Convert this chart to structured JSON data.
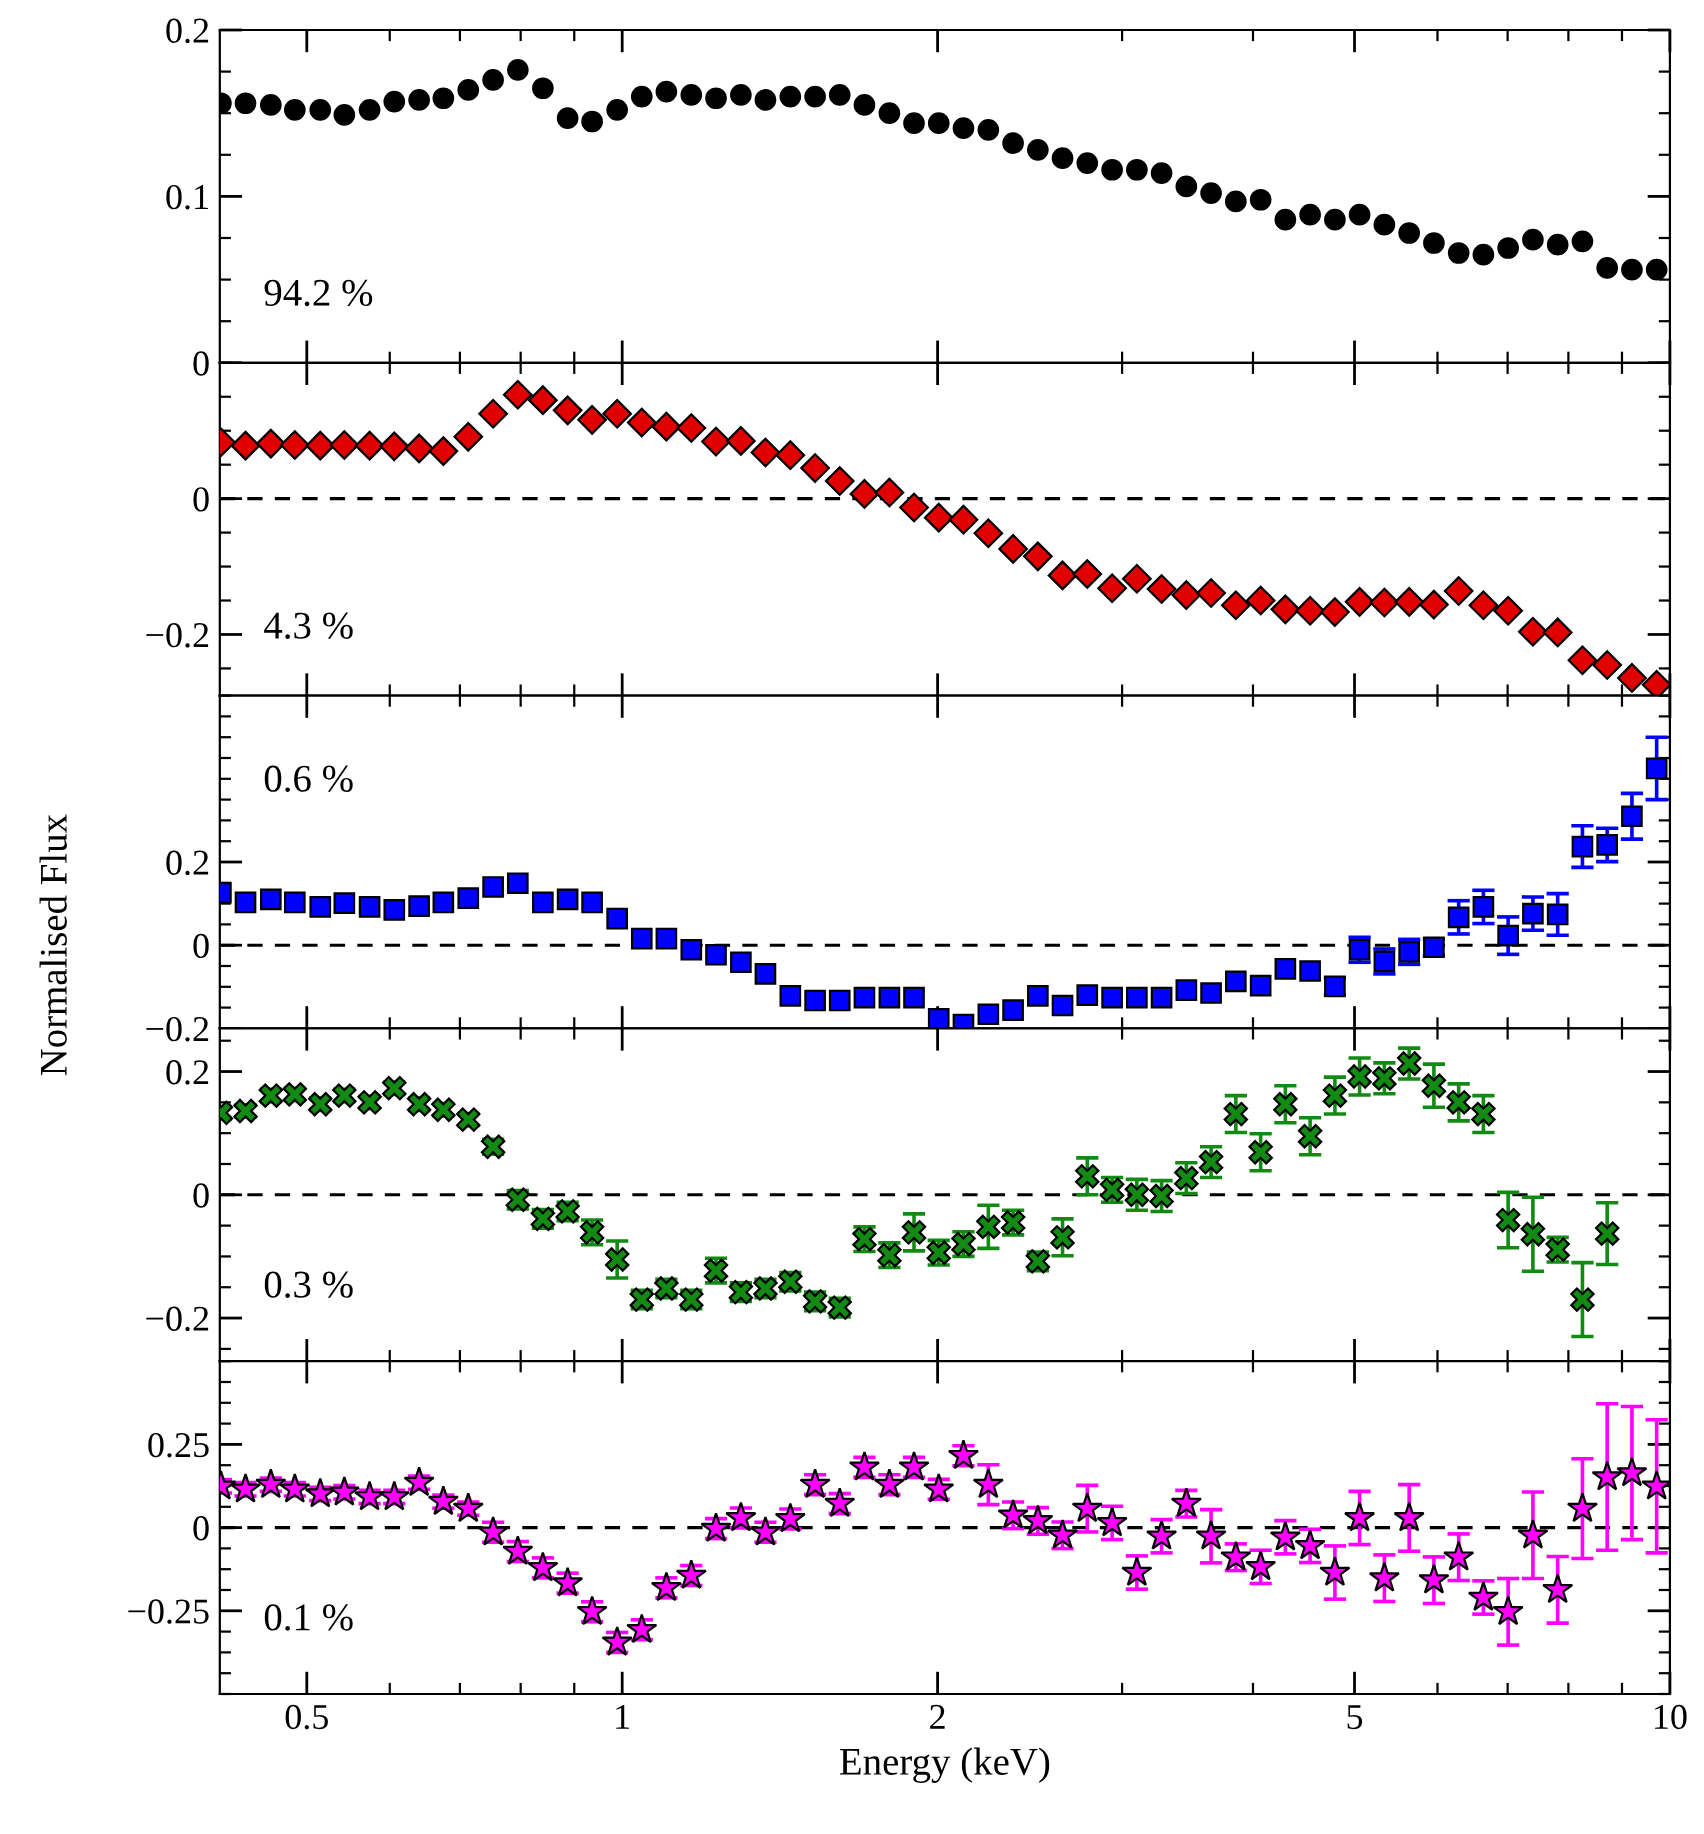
{
  "chart_data": [
    {
      "type": "scatter",
      "log": "x",
      "x": [
        0.414,
        0.437,
        0.462,
        0.487,
        0.515,
        0.543,
        0.574,
        0.606,
        0.64,
        0.675,
        0.713,
        0.753,
        0.795,
        0.84,
        0.887,
        0.936,
        0.989,
        1.044,
        1.102,
        1.164,
        1.229,
        1.298,
        1.37,
        1.447,
        1.528,
        1.613,
        1.703,
        1.799,
        1.899,
        2.005,
        2.117,
        2.236,
        2.361,
        2.493,
        2.632,
        2.779,
        2.935,
        3.099,
        3.272,
        3.455,
        3.648,
        3.852,
        4.068,
        4.295,
        4.535,
        4.789,
        5.056,
        5.339,
        5.638,
        5.953,
        6.286,
        6.637,
        7.008,
        7.4,
        7.814,
        8.251,
        8.712,
        9.199,
        9.713
      ],
      "xlim": [
        0.413,
        10
      ],
      "xticks": [
        0.5,
        1,
        2,
        5,
        10
      ],
      "ylim": [
        0,
        0.2
      ],
      "yticks": [
        0,
        {
          "value": 0.1,
          "label": "0.1"
        },
        {
          "value": 0.2,
          "label": "0.2"
        }
      ],
      "tick_labels": "y",
      "marker": "circle",
      "grid": false,
      "annotations": [
        "94.2 %"
      ],
      "series": [
        {
          "color": "#000000",
          "values": [
            0.156,
            0.156,
            0.155,
            0.152,
            0.152,
            0.149,
            0.152,
            0.157,
            0.158,
            0.159,
            0.164,
            0.17,
            0.176,
            0.165,
            0.147,
            0.145,
            0.152,
            0.16,
            0.163,
            0.161,
            0.159,
            0.161,
            0.158,
            0.16,
            0.16,
            0.161,
            0.155,
            0.15,
            0.144,
            0.144,
            0.141,
            0.14,
            0.132,
            0.128,
            0.123,
            0.12,
            0.116,
            0.116,
            0.114,
            0.106,
            0.102,
            0.097,
            0.098,
            0.086,
            0.089,
            0.086,
            0.089,
            0.083,
            0.078,
            0.072,
            0.066,
            0.065,
            0.069,
            0.074,
            0.071,
            0.073,
            0.057,
            0.056,
            0.056
          ]
        }
      ]
    },
    {
      "type": "scatter",
      "log": "x",
      "x": [
        0.414,
        0.437,
        0.462,
        0.487,
        0.515,
        0.543,
        0.574,
        0.606,
        0.64,
        0.675,
        0.713,
        0.753,
        0.795,
        0.84,
        0.887,
        0.936,
        0.989,
        1.044,
        1.102,
        1.164,
        1.229,
        1.298,
        1.37,
        1.447,
        1.528,
        1.613,
        1.703,
        1.799,
        1.899,
        2.005,
        2.117,
        2.236,
        2.361,
        2.493,
        2.632,
        2.779,
        2.935,
        3.099,
        3.272,
        3.455,
        3.648,
        3.852,
        4.068,
        4.295,
        4.535,
        4.789,
        5.056,
        5.339,
        5.638,
        5.953,
        6.286,
        6.637,
        7.008,
        7.4,
        7.814,
        8.251,
        8.712,
        9.199,
        9.713
      ],
      "xlim": [
        0.413,
        10
      ],
      "xticks": [
        0.5,
        1,
        2,
        5,
        10
      ],
      "ylim": [
        -0.29,
        0.2
      ],
      "yticks": [
        {
          "value": -0.2,
          "label": "−0.2"
        },
        0
      ],
      "tick_labels": "y",
      "marker": "diamond",
      "grid": false,
      "annotations": [
        "4.3 %"
      ],
      "ref_lines": [
        {
          "axis": "y",
          "value": 0,
          "color": "#000000",
          "line_style": "dashed"
        }
      ],
      "series": [
        {
          "color": "#e00000",
          "values": [
            0.083,
            0.078,
            0.081,
            0.079,
            0.078,
            0.079,
            0.078,
            0.077,
            0.074,
            0.07,
            0.091,
            0.125,
            0.153,
            0.145,
            0.13,
            0.116,
            0.125,
            0.112,
            0.106,
            0.104,
            0.084,
            0.085,
            0.068,
            0.064,
            0.045,
            0.026,
            0.007,
            0.009,
            -0.013,
            -0.028,
            -0.031,
            -0.051,
            -0.074,
            -0.085,
            -0.113,
            -0.111,
            -0.132,
            -0.118,
            -0.133,
            -0.142,
            -0.139,
            -0.157,
            -0.15,
            -0.163,
            -0.165,
            -0.167,
            -0.152,
            -0.153,
            -0.152,
            -0.156,
            -0.136,
            -0.157,
            -0.165,
            -0.196,
            -0.197,
            -0.238,
            -0.245,
            -0.264,
            -0.274
          ]
        }
      ]
    },
    {
      "type": "scatter",
      "log": "x",
      "x": [
        0.414,
        0.437,
        0.462,
        0.487,
        0.515,
        0.543,
        0.574,
        0.606,
        0.64,
        0.675,
        0.713,
        0.753,
        0.795,
        0.84,
        0.887,
        0.936,
        0.989,
        1.044,
        1.102,
        1.164,
        1.229,
        1.298,
        1.37,
        1.447,
        1.528,
        1.613,
        1.703,
        1.799,
        1.899,
        2.005,
        2.117,
        2.236,
        2.361,
        2.493,
        2.632,
        2.779,
        2.935,
        3.099,
        3.272,
        3.455,
        3.648,
        3.852,
        4.068,
        4.295,
        4.535,
        4.789,
        5.056,
        5.339,
        5.638,
        5.953,
        6.286,
        6.637,
        7.008,
        7.4,
        7.814,
        8.251,
        8.712,
        9.199,
        9.713
      ],
      "xlim": [
        0.413,
        10
      ],
      "xticks": [
        0.5,
        1,
        2,
        5,
        10
      ],
      "ylim": [
        -0.2,
        0.6
      ],
      "yticks": [
        {
          "value": -0.2,
          "label": "−0.2"
        },
        0,
        {
          "value": 0.2,
          "label": "0.2"
        }
      ],
      "tick_labels": "y",
      "marker": "square",
      "grid": false,
      "ylabel": "Normalised Flux",
      "annotations": [
        "0.6 %"
      ],
      "ref_lines": [
        {
          "axis": "y",
          "value": 0,
          "color": "#000000",
          "line_style": "dashed"
        }
      ],
      "series": [
        {
          "color": "#0000ff",
          "values": [
            0.126,
            0.103,
            0.11,
            0.103,
            0.092,
            0.101,
            0.092,
            0.085,
            0.094,
            0.103,
            0.113,
            0.14,
            0.149,
            0.103,
            0.11,
            0.103,
            0.064,
            0.016,
            0.016,
            -0.011,
            -0.023,
            -0.041,
            -0.069,
            -0.122,
            -0.133,
            -0.133,
            -0.126,
            -0.126,
            -0.126,
            -0.177,
            -0.191,
            -0.166,
            -0.156,
            -0.122,
            -0.145,
            -0.12,
            -0.126,
            -0.126,
            -0.126,
            -0.108,
            -0.115,
            -0.087,
            -0.097,
            -0.057,
            -0.062,
            -0.099,
            -0.011,
            -0.039,
            -0.016,
            -0.005,
            0.067,
            0.092,
            0.023,
            0.076,
            0.074,
            0.237,
            0.241,
            0.31,
            0.425
          ],
          "errors": [
            null,
            null,
            null,
            null,
            null,
            null,
            null,
            null,
            null,
            null,
            null,
            null,
            null,
            null,
            null,
            null,
            null,
            null,
            null,
            null,
            null,
            null,
            null,
            null,
            null,
            null,
            null,
            null,
            null,
            null,
            null,
            null,
            null,
            null,
            null,
            null,
            null,
            null,
            null,
            null,
            null,
            null,
            null,
            null,
            null,
            0.02,
            0.03,
            0.03,
            0.03,
            0.02,
            0.04,
            0.04,
            0.045,
            0.04,
            0.05,
            0.05,
            0.04,
            0.055,
            0.075
          ]
        }
      ]
    },
    {
      "type": "scatter",
      "log": "x",
      "x": [
        0.414,
        0.437,
        0.462,
        0.487,
        0.515,
        0.543,
        0.574,
        0.606,
        0.64,
        0.675,
        0.713,
        0.753,
        0.795,
        0.84,
        0.887,
        0.936,
        0.989,
        1.044,
        1.102,
        1.164,
        1.229,
        1.298,
        1.37,
        1.447,
        1.528,
        1.613,
        1.703,
        1.799,
        1.899,
        2.005,
        2.117,
        2.236,
        2.361,
        2.493,
        2.632,
        2.779,
        2.935,
        3.099,
        3.272,
        3.455,
        3.648,
        3.852,
        4.068,
        4.295,
        4.535,
        4.789,
        5.056,
        5.339,
        5.638,
        5.953,
        6.286,
        6.637,
        7.008,
        7.4,
        7.814,
        8.251,
        8.712
      ],
      "xlim": [
        0.413,
        10
      ],
      "xticks": [
        0.5,
        1,
        2,
        5,
        10
      ],
      "ylim": [
        -0.27,
        0.27
      ],
      "yticks": [
        {
          "value": -0.2,
          "label": "−0.2"
        },
        0,
        {
          "value": 0.2,
          "label": "0.2"
        }
      ],
      "tick_labels": "y",
      "marker": "cross",
      "grid": false,
      "annotations": [
        "0.3 %"
      ],
      "ref_lines": [
        {
          "axis": "y",
          "value": 0,
          "color": "#000000",
          "line_style": "dashed"
        }
      ],
      "series": [
        {
          "color": "#138a13",
          "values": [
            0.133,
            0.136,
            0.161,
            0.163,
            0.147,
            0.161,
            0.15,
            0.173,
            0.147,
            0.138,
            0.122,
            0.078,
            -0.008,
            -0.039,
            -0.027,
            -0.061,
            -0.105,
            -0.17,
            -0.152,
            -0.17,
            -0.123,
            -0.158,
            -0.152,
            -0.141,
            -0.173,
            -0.183,
            -0.072,
            -0.098,
            -0.061,
            -0.094,
            -0.08,
            -0.052,
            -0.045,
            -0.108,
            -0.069,
            0.03,
            0.008,
            0.0,
            -0.002,
            0.027,
            0.053,
            0.131,
            0.069,
            0.147,
            0.095,
            0.161,
            0.192,
            0.189,
            0.213,
            0.177,
            0.15,
            0.131,
            -0.041,
            -0.064,
            -0.089,
            -0.17,
            -0.063
          ],
          "errors": [
            0.01,
            0.01,
            0.01,
            0.01,
            0.01,
            0.01,
            0.01,
            0.01,
            0.01,
            0.01,
            0.01,
            0.012,
            0.015,
            0.015,
            0.015,
            0.02,
            0.03,
            0.015,
            0.015,
            0.015,
            0.02,
            0.015,
            0.015,
            0.015,
            0.015,
            0.015,
            0.02,
            0.02,
            0.03,
            0.02,
            0.02,
            0.035,
            0.02,
            0.015,
            0.03,
            0.03,
            0.02,
            0.025,
            0.025,
            0.025,
            0.025,
            0.03,
            0.03,
            0.03,
            0.03,
            0.03,
            0.03,
            0.025,
            0.025,
            0.035,
            0.03,
            0.03,
            0.045,
            0.06,
            0.02,
            0.06,
            0.05
          ]
        }
      ]
    },
    {
      "type": "scatter",
      "log": "x",
      "x": [
        0.414,
        0.437,
        0.462,
        0.487,
        0.515,
        0.543,
        0.574,
        0.606,
        0.64,
        0.675,
        0.713,
        0.753,
        0.795,
        0.84,
        0.887,
        0.936,
        0.989,
        1.044,
        1.102,
        1.164,
        1.229,
        1.298,
        1.37,
        1.447,
        1.528,
        1.613,
        1.703,
        1.799,
        1.899,
        2.005,
        2.117,
        2.236,
        2.361,
        2.493,
        2.632,
        2.779,
        2.935,
        3.099,
        3.272,
        3.455,
        3.648,
        3.852,
        4.068,
        4.295,
        4.535,
        4.789,
        5.056,
        5.339,
        5.638,
        5.953,
        6.286,
        6.637,
        7.008,
        7.4,
        7.814,
        8.251,
        8.712,
        9.199,
        9.713
      ],
      "xlim": [
        0.413,
        10
      ],
      "xticks": [
        0.5,
        1,
        2,
        5,
        10
      ],
      "ylim": [
        -0.5,
        0.5
      ],
      "yticks": [
        {
          "value": -0.25,
          "label": "−0.25"
        },
        0,
        {
          "value": 0.25,
          "label": "0.25"
        }
      ],
      "xlabel": "Energy (keV)",
      "marker": "star",
      "grid": false,
      "annotations": [
        "0.1 %"
      ],
      "ref_lines": [
        {
          "axis": "y",
          "value": 0,
          "color": "#000000",
          "line_style": "dashed"
        }
      ],
      "series": [
        {
          "color": "#ff00ff",
          "values": [
            0.124,
            0.115,
            0.129,
            0.115,
            0.101,
            0.106,
            0.092,
            0.092,
            0.135,
            0.078,
            0.057,
            -0.014,
            -0.072,
            -0.121,
            -0.167,
            -0.253,
            -0.345,
            -0.307,
            -0.181,
            -0.144,
            -0.003,
            0.029,
            -0.014,
            0.026,
            0.129,
            0.072,
            0.181,
            0.129,
            0.181,
            0.115,
            0.216,
            0.129,
            0.037,
            0.02,
            -0.023,
            0.057,
            0.014,
            -0.135,
            -0.026,
            0.072,
            -0.026,
            -0.089,
            -0.118,
            -0.029,
            -0.055,
            -0.135,
            0.029,
            -0.152,
            0.029,
            -0.158,
            -0.089,
            -0.21,
            -0.253,
            -0.023,
            -0.187,
            0.057,
            0.152,
            0.164,
            0.124
          ],
          "errors": [
            0.02,
            0.02,
            0.02,
            0.02,
            0.02,
            0.02,
            0.02,
            0.02,
            0.02,
            0.02,
            0.02,
            0.03,
            0.03,
            0.03,
            0.03,
            0.03,
            0.03,
            0.03,
            0.03,
            0.03,
            0.03,
            0.03,
            0.03,
            0.03,
            0.03,
            0.03,
            0.03,
            0.03,
            0.03,
            0.03,
            0.03,
            0.06,
            0.04,
            0.04,
            0.04,
            0.07,
            0.05,
            0.05,
            0.05,
            0.04,
            0.08,
            0.04,
            0.05,
            0.05,
            0.05,
            0.08,
            0.08,
            0.07,
            0.1,
            0.07,
            0.07,
            0.05,
            0.1,
            0.13,
            0.1,
            0.15,
            0.22,
            0.2,
            0.2
          ]
        }
      ]
    }
  ]
}
